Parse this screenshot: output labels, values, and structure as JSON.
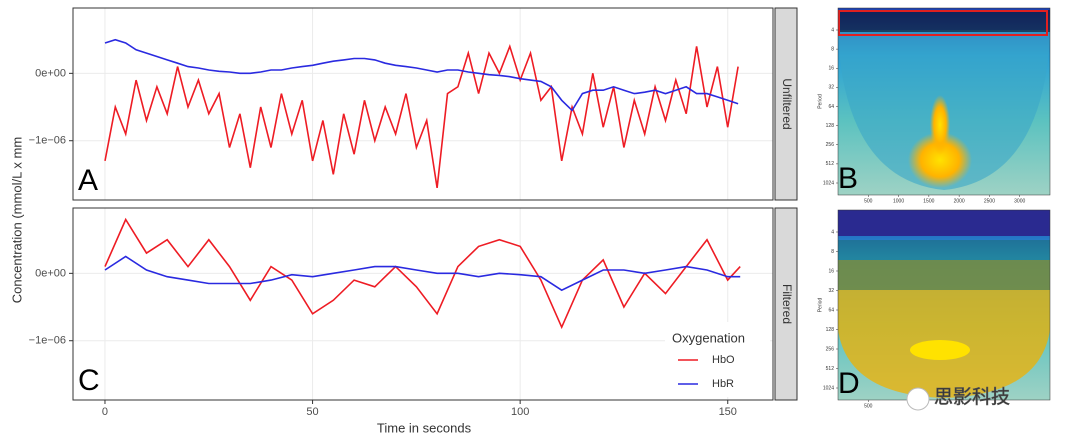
{
  "chart_data": {
    "type": "line",
    "xlabel": "Time in seconds",
    "ylabel": "Concentration (mmol/L x mm",
    "xlim": [
      -7.7,
      160.9
    ],
    "xticks": [
      0,
      50,
      100,
      150
    ],
    "ylim": [
      -1.88e-06,
      9.7e-07
    ],
    "yticks": [
      {
        "value": 0,
        "label": "0e+00"
      },
      {
        "value": -1e-06,
        "label": "−1e−06"
      }
    ],
    "grid": true,
    "legend_title": "Oxygenation",
    "panels": [
      {
        "strip": "Unfiltered",
        "letter": "A",
        "x": [
          0,
          2.5,
          5,
          7.5,
          10,
          12.5,
          15,
          17.5,
          20,
          22.5,
          25,
          27.5,
          30,
          32.5,
          35,
          37.5,
          40,
          42.5,
          45,
          47.5,
          50,
          52.5,
          55,
          57.5,
          60,
          62.5,
          65,
          67.5,
          70,
          72.5,
          75,
          77.5,
          80,
          82.5,
          85,
          87.5,
          90,
          92.5,
          95,
          97.5,
          100,
          102.5,
          105,
          107.5,
          110,
          112.5,
          115,
          117.5,
          120,
          122.5,
          125,
          127.5,
          130,
          132.5,
          135,
          137.5,
          140,
          142.5,
          145,
          147.5,
          150,
          152.5
        ],
        "series": [
          {
            "name": "HbO",
            "color": "#ee1c24",
            "values": [
              -1.3e-06,
              -5e-07,
              -9e-07,
              -1e-07,
              -7e-07,
              -2e-07,
              -6e-07,
              1e-07,
              -5e-07,
              -1e-07,
              -6e-07,
              -3e-07,
              -1.1e-06,
              -6e-07,
              -1.4e-06,
              -5e-07,
              -1.1e-06,
              -3e-07,
              -9e-07,
              -4e-07,
              -1.3e-06,
              -7e-07,
              -1.5e-06,
              -6e-07,
              -1.2e-06,
              -4e-07,
              -1e-06,
              -5e-07,
              -9e-07,
              -3e-07,
              -1.1e-06,
              -7e-07,
              -1.7e-06,
              -3e-07,
              -2e-07,
              3e-07,
              -3e-07,
              3e-07,
              0.0,
              4e-07,
              -1e-07,
              3e-07,
              -4e-07,
              -2e-07,
              -1.3e-06,
              -5e-07,
              -9e-07,
              0.0,
              -8e-07,
              -2e-07,
              -1.1e-06,
              -4e-07,
              -9e-07,
              -2e-07,
              -7e-07,
              -1e-07,
              -6e-07,
              4e-07,
              -5e-07,
              1e-07,
              -8e-07,
              1e-07
            ]
          },
          {
            "name": "HbR",
            "color": "#2a2ae0",
            "values": [
              4.5e-07,
              5e-07,
              4.5e-07,
              3.5e-07,
              3e-07,
              2.5e-07,
              2e-07,
              1.5e-07,
              1e-07,
              8e-08,
              5e-08,
              3e-08,
              2e-08,
              0.0,
              0.0,
              2e-08,
              5e-08,
              5e-08,
              8e-08,
              1e-07,
              1.2e-07,
              1.5e-07,
              1.8e-07,
              2e-07,
              2.2e-07,
              2.2e-07,
              2e-07,
              1.5e-07,
              1.2e-07,
              1e-07,
              8e-08,
              5e-08,
              2e-08,
              5e-08,
              5e-08,
              2e-08,
              0.0,
              -2e-08,
              -3e-08,
              -5e-08,
              -8e-08,
              -1e-07,
              -1.2e-07,
              -2e-07,
              -4e-07,
              -5.5e-07,
              -3e-07,
              -2.5e-07,
              -2.5e-07,
              -2e-07,
              -2.5e-07,
              -3e-07,
              -2.8e-07,
              -2.5e-07,
              -3e-07,
              -2.5e-07,
              -2e-07,
              -3e-07,
              -3e-07,
              -3.5e-07,
              -4e-07,
              -4.5e-07
            ]
          }
        ]
      },
      {
        "strip": "Filtered",
        "letter": "C",
        "x": [
          0,
          5,
          10,
          15,
          20,
          25,
          30,
          35,
          40,
          45,
          50,
          55,
          60,
          65,
          70,
          75,
          80,
          85,
          90,
          95,
          100,
          105,
          110,
          115,
          120,
          125,
          130,
          135,
          140,
          145,
          150,
          153
        ],
        "series": [
          {
            "name": "HbO",
            "color": "#ee1c24",
            "values": [
              1e-07,
              8e-07,
              3e-07,
              5e-07,
              1e-07,
              5e-07,
              1e-07,
              -4e-07,
              1e-07,
              -1e-07,
              -6e-07,
              -4e-07,
              -1e-07,
              -2e-07,
              1e-07,
              -2e-07,
              -6e-07,
              1e-07,
              4e-07,
              5e-07,
              4e-07,
              -1e-07,
              -8e-07,
              -1e-07,
              2e-07,
              -5e-07,
              0.0,
              -3e-07,
              1e-07,
              5e-07,
              -1e-07,
              1e-07
            ]
          },
          {
            "name": "HbR",
            "color": "#2a2ae0",
            "values": [
              5e-08,
              2.5e-07,
              5e-08,
              -5e-08,
              -1e-07,
              -1.5e-07,
              -1.5e-07,
              -1.5e-07,
              -1e-07,
              -2e-08,
              -5e-08,
              0.0,
              5e-08,
              1e-07,
              1e-07,
              5e-08,
              0.0,
              0.0,
              -5e-08,
              0.0,
              -2e-08,
              -5e-08,
              -2.5e-07,
              -1e-07,
              5e-08,
              5e-08,
              0.0,
              5e-08,
              1e-07,
              5e-08,
              -5e-08,
              -5e-08
            ]
          }
        ]
      }
    ],
    "wavelet": {
      "ylabel": "Period",
      "yticks": [
        4,
        8,
        16,
        32,
        64,
        128,
        256,
        512,
        1024
      ],
      "panels": [
        {
          "letter": "B",
          "xticks": [
            500,
            1000,
            1500,
            2000,
            2500,
            3000
          ]
        },
        {
          "letter": "D",
          "xticks": [
            500
          ]
        }
      ]
    },
    "watermark": "思影科技"
  }
}
